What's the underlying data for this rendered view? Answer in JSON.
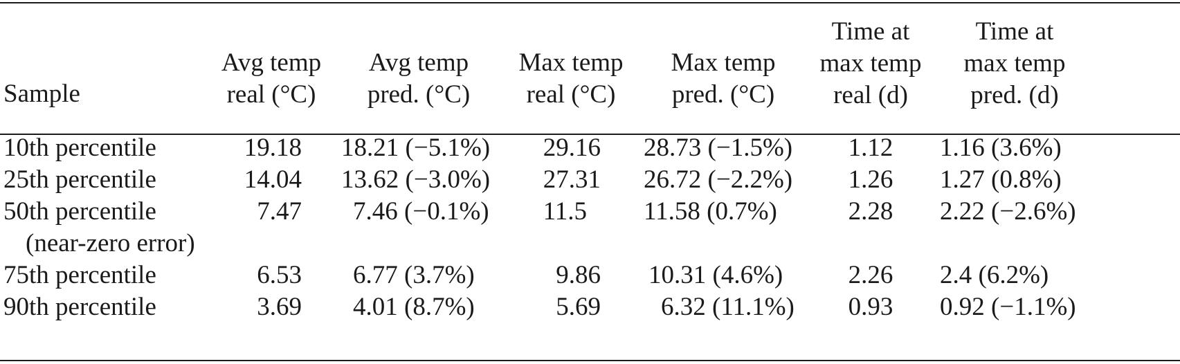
{
  "table": {
    "headers": [
      [
        "Sample"
      ],
      [
        "Avg temp",
        "real (°C)"
      ],
      [
        "Avg temp",
        "pred. (°C)"
      ],
      [
        "Max temp",
        "real (°C)"
      ],
      [
        "Max temp",
        "pred. (°C)"
      ],
      [
        "Time at",
        "max temp",
        "real (d)"
      ],
      [
        "Time at",
        "max temp",
        "pred. (d)"
      ]
    ],
    "rows": [
      [
        "10th percentile",
        "19.18",
        "18.21 (−5.1%)",
        "29.16",
        "28.73 (−1.5%)",
        "1.12",
        "1.16 (3.6%)"
      ],
      [
        "25th percentile",
        "14.04",
        "13.62 (−3.0%)",
        "27.31",
        "26.72 (−2.2%)",
        "1.26",
        "1.27 (0.8%)"
      ],
      [
        "50th percentile",
        "7.47",
        "7.46 (−0.1%)",
        "11.5",
        "11.58 (0.7%)",
        "2.28",
        "2.22 (−2.6%)"
      ],
      [
        "(near-zero error)",
        "",
        "",
        "",
        "",
        "",
        ""
      ],
      [
        "75th percentile",
        "6.53",
        "6.77 (3.7%)",
        "9.86",
        "10.31 (4.6%)",
        "2.26",
        "2.4 (6.2%)"
      ],
      [
        "90th percentile",
        "3.69",
        "4.01 (8.7%)",
        "5.69",
        "6.32 (11.1%)",
        "0.93",
        "0.92 (−1.1%)"
      ]
    ]
  }
}
